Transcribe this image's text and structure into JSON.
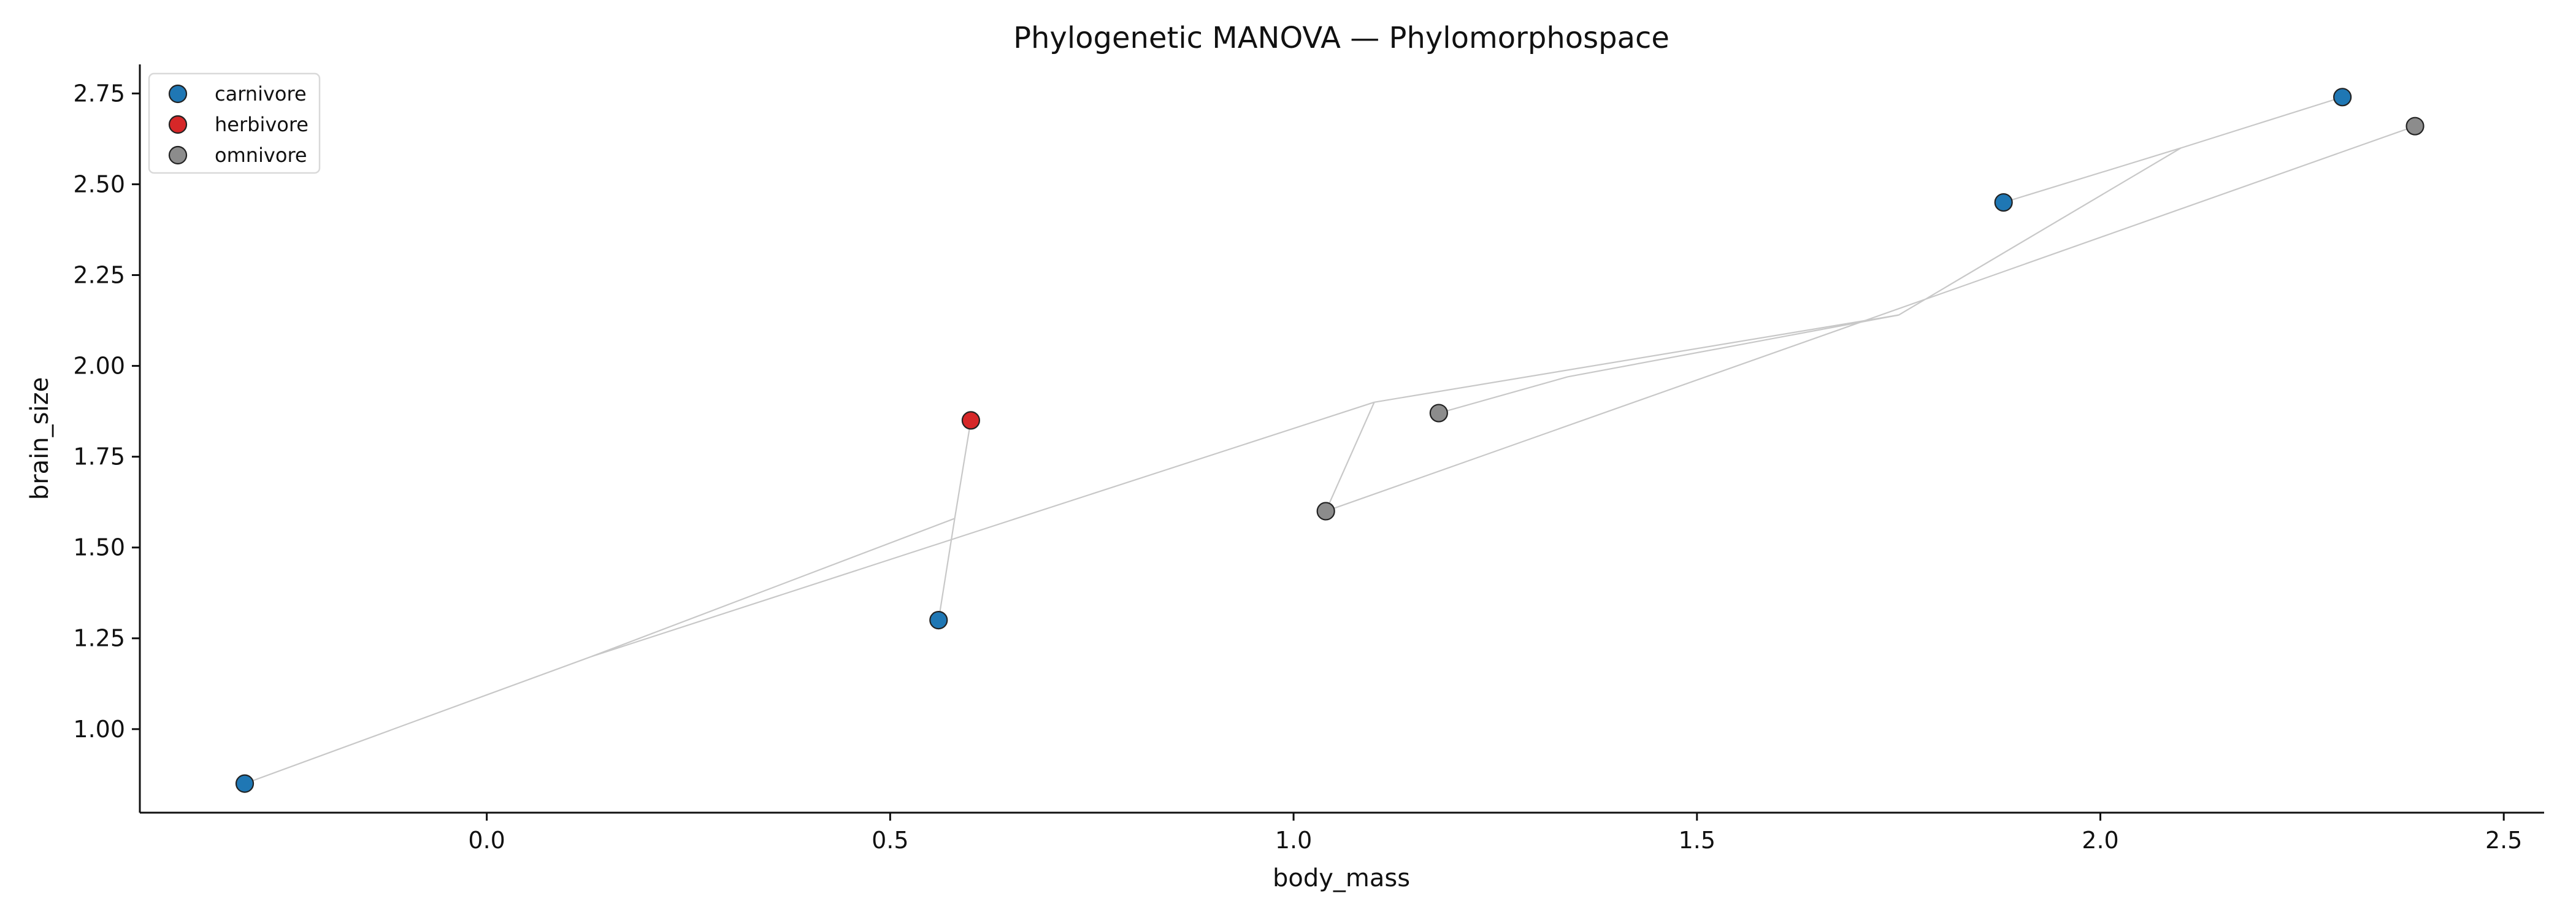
{
  "chart_data": {
    "type": "scatter",
    "title": "Phylogenetic MANOVA — Phylomorphospace",
    "xlabel": "body_mass",
    "ylabel": "brain_size",
    "xlim": [
      -0.43,
      2.55
    ],
    "ylim": [
      0.77,
      2.83
    ],
    "x_ticks": [
      0.0,
      0.5,
      1.0,
      1.5,
      2.0,
      2.5
    ],
    "x_tick_labels": [
      "0.0",
      "0.5",
      "1.0",
      "1.5",
      "2.0",
      "2.5"
    ],
    "y_ticks": [
      1.0,
      1.25,
      1.5,
      1.75,
      2.0,
      2.25,
      2.5,
      2.75
    ],
    "y_tick_labels": [
      "1.00",
      "1.25",
      "1.50",
      "1.75",
      "2.00",
      "2.25",
      "2.50",
      "2.75"
    ],
    "grid": false,
    "legend_position": "top-left",
    "series": [
      {
        "name": "carnivore",
        "color": "#1f77b4",
        "points": [
          {
            "x": -0.3,
            "y": 0.85
          },
          {
            "x": 0.56,
            "y": 1.3
          },
          {
            "x": 1.88,
            "y": 2.45
          },
          {
            "x": 2.3,
            "y": 2.74
          }
        ]
      },
      {
        "name": "herbivore",
        "color": "#d62728",
        "points": [
          {
            "x": 0.6,
            "y": 1.85
          }
        ]
      },
      {
        "name": "omnivore",
        "color": "#8c8c8c",
        "points": [
          {
            "x": 1.04,
            "y": 1.6
          },
          {
            "x": 1.18,
            "y": 1.87
          },
          {
            "x": 2.39,
            "y": 2.66
          }
        ]
      }
    ],
    "tree_edges": [
      [
        [
          0.13,
          1.2
        ],
        [
          -0.3,
          0.85
        ]
      ],
      [
        [
          0.13,
          1.2
        ],
        [
          0.58,
          1.58
        ]
      ],
      [
        [
          0.58,
          1.58
        ],
        [
          0.56,
          1.3
        ]
      ],
      [
        [
          0.58,
          1.58
        ],
        [
          0.6,
          1.85
        ]
      ],
      [
        [
          0.13,
          1.2
        ],
        [
          1.1,
          1.9
        ]
      ],
      [
        [
          1.1,
          1.9
        ],
        [
          1.75,
          2.14
        ]
      ],
      [
        [
          1.75,
          2.14
        ],
        [
          1.34,
          1.97
        ]
      ],
      [
        [
          1.34,
          1.97
        ],
        [
          1.18,
          1.87
        ]
      ],
      [
        [
          1.75,
          2.14
        ],
        [
          2.1,
          2.6
        ]
      ],
      [
        [
          2.1,
          2.6
        ],
        [
          1.88,
          2.45
        ]
      ],
      [
        [
          2.1,
          2.6
        ],
        [
          2.3,
          2.74
        ]
      ],
      [
        [
          1.1,
          1.9
        ],
        [
          1.04,
          1.6
        ]
      ],
      [
        [
          1.04,
          1.6
        ],
        [
          2.39,
          2.66
        ]
      ]
    ]
  }
}
